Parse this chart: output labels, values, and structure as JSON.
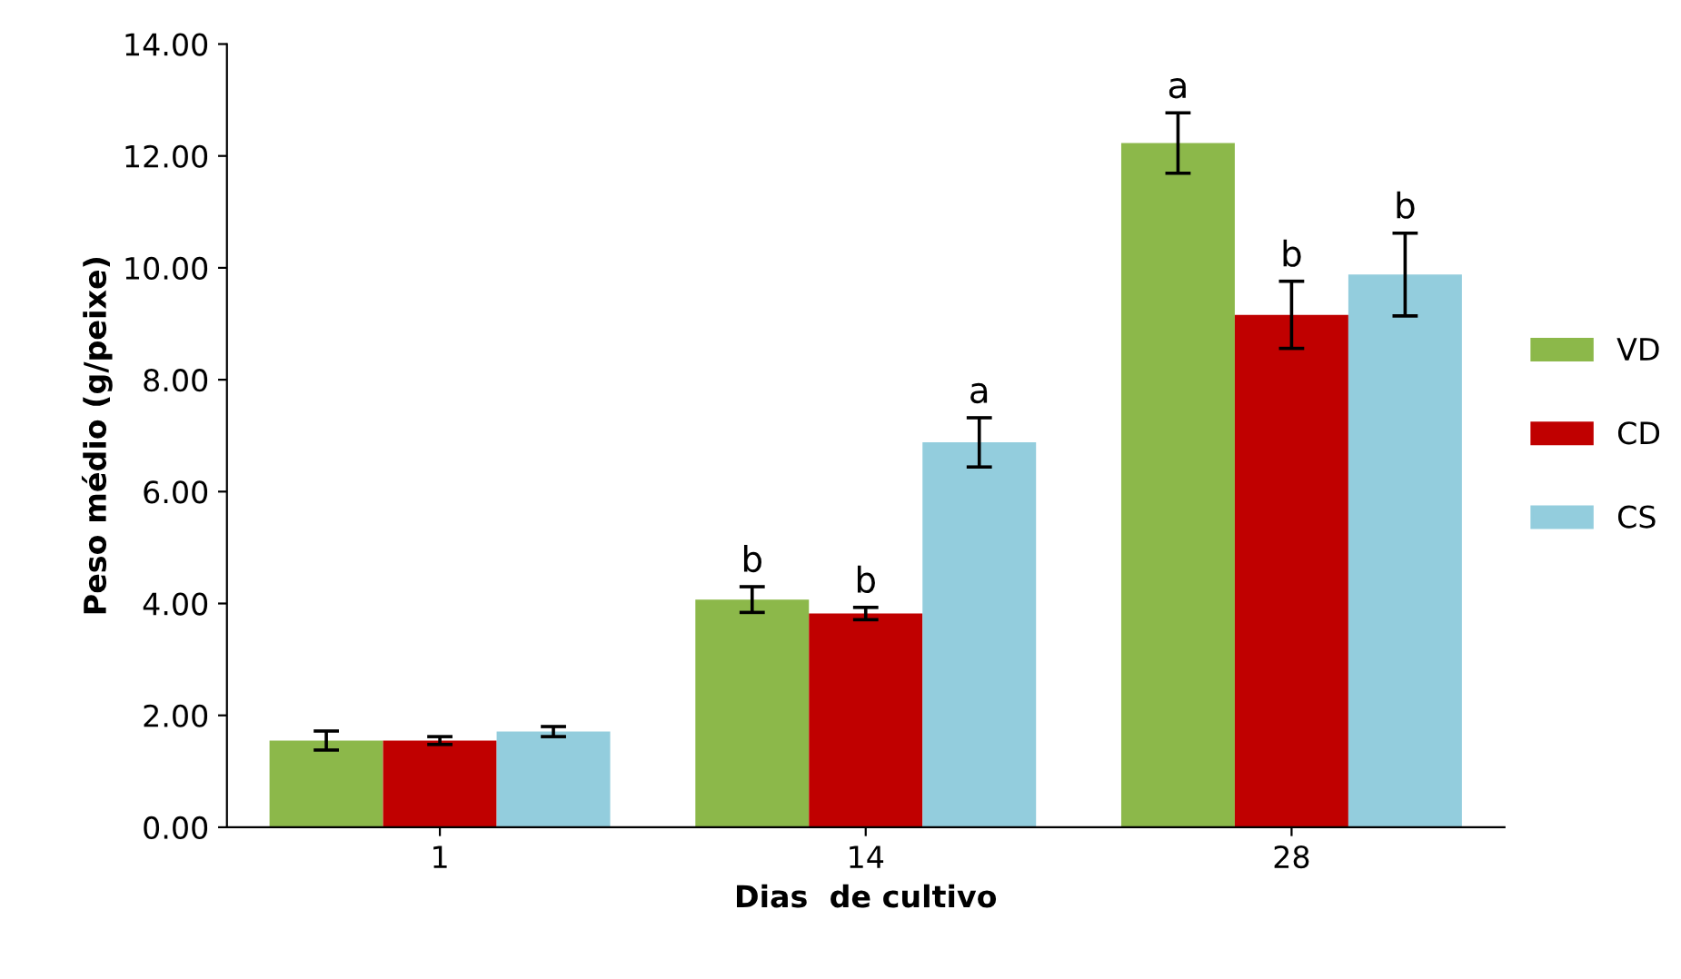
{
  "chart_data": {
    "type": "bar",
    "xlabel": "Dias  de cultivo",
    "ylabel": "Peso médio (g/peixe)",
    "categories": [
      "1",
      "14",
      "28"
    ],
    "series": [
      {
        "name": "VD",
        "color": "#8cb84a",
        "values": [
          1.55,
          4.07,
          12.23
        ],
        "errors": [
          0.17,
          0.23,
          0.54
        ],
        "value_labels": [
          null,
          "b",
          "a"
        ]
      },
      {
        "name": "CD",
        "color": "#c00000",
        "values": [
          1.55,
          3.82,
          9.16
        ],
        "errors": [
          0.07,
          0.11,
          0.6
        ],
        "value_labels": [
          null,
          "b",
          "b"
        ]
      },
      {
        "name": "CS",
        "color": "#93cddd",
        "values": [
          1.71,
          6.88,
          9.88
        ],
        "errors": [
          0.09,
          0.44,
          0.74
        ],
        "value_labels": [
          null,
          "a",
          "b"
        ]
      }
    ],
    "ylim": [
      0,
      14
    ],
    "yticks": [
      {
        "value": 0,
        "label": "0.00"
      },
      {
        "value": 2,
        "label": "2.00"
      },
      {
        "value": 4,
        "label": "4.00"
      },
      {
        "value": 6,
        "label": "6.00"
      },
      {
        "value": 8,
        "label": "8.00"
      },
      {
        "value": 10,
        "label": "10.00"
      },
      {
        "value": 12,
        "label": "12.00"
      },
      {
        "value": 14,
        "label": "14.00"
      }
    ],
    "grid": false,
    "legend": "right"
  }
}
